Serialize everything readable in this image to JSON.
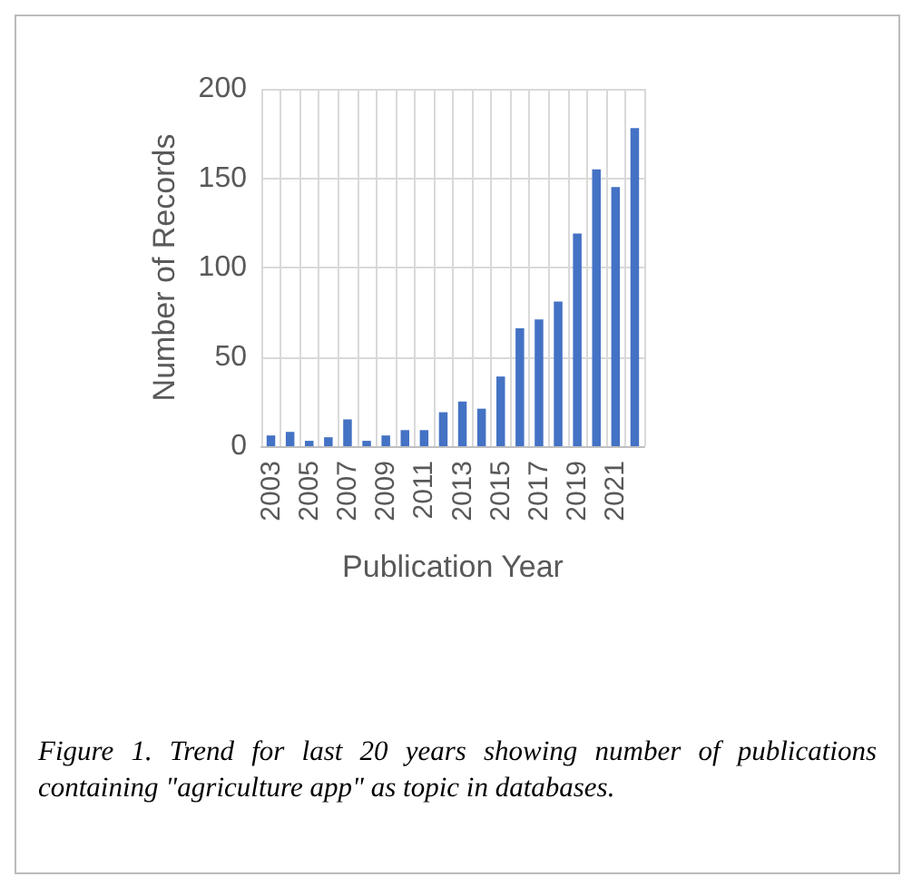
{
  "chart_data": {
    "type": "bar",
    "xlabel": "Publication Year",
    "ylabel": "Number of Records",
    "categories": [
      "2003",
      null,
      "2005",
      null,
      "2007",
      null,
      "2009",
      null,
      "2011",
      null,
      "2013",
      null,
      "2015",
      null,
      "2017",
      null,
      "2019",
      null,
      "2021",
      null
    ],
    "values": [
      6,
      8,
      3,
      5,
      15,
      3,
      6,
      9,
      9,
      19,
      25,
      21,
      39,
      66,
      71,
      81,
      119,
      155,
      145,
      178
    ],
    "color": "#4472c4",
    "ylim": [
      0,
      200
    ],
    "yticks": [
      0,
      50,
      100,
      150,
      200
    ],
    "grid": true,
    "annotations": [
      "Figure 1. Trend for last 20 years showing number of publications containing \"agriculture app\" as topic in databases."
    ]
  }
}
